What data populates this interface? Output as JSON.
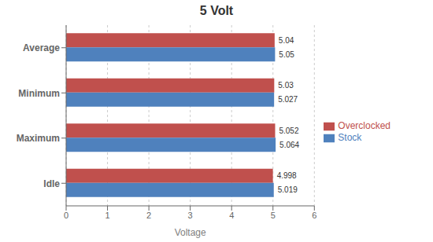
{
  "chart_data": {
    "type": "bar",
    "orientation": "horizontal",
    "title": "5 Volt",
    "xlabel": "Voltage",
    "categories": [
      "Average",
      "Minimum",
      "Maximum",
      "Idle"
    ],
    "series": [
      {
        "name": "Overclocked",
        "color": "#C0504D",
        "values": [
          5.04,
          5.03,
          5.052,
          4.998
        ]
      },
      {
        "name": "Stock",
        "color": "#4F81BD",
        "values": [
          5.05,
          5.027,
          5.064,
          5.019
        ]
      }
    ],
    "xlim": [
      0,
      6
    ],
    "xticks": [
      0,
      1,
      2,
      3,
      4,
      5,
      6
    ],
    "grid": true,
    "legend": "right",
    "data_labels": true
  }
}
